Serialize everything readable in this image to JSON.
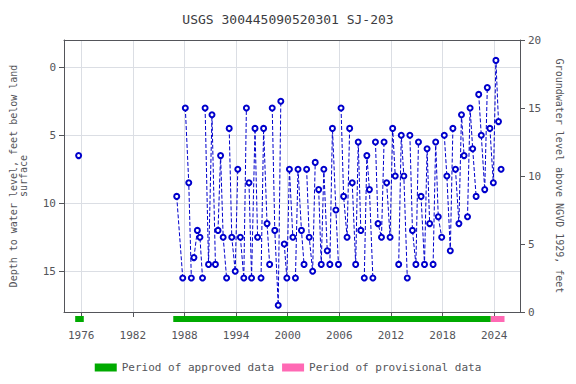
{
  "chart_data": {
    "type": "line",
    "title": "USGS 300445090520301 SJ-203",
    "ylabel": "Depth to water level, feet below land\nsurface",
    "y2label": "Groundwater level above NGVD 1929, feet",
    "xlim": [
      1974,
      2027
    ],
    "xticks": [
      1976,
      1982,
      1988,
      1994,
      2000,
      2006,
      2012,
      2018,
      2024
    ],
    "ylim": [
      18,
      -2
    ],
    "yticks": [
      0,
      5,
      10,
      15
    ],
    "y2lim": [
      0,
      20
    ],
    "y2ticks": [
      0,
      5,
      10,
      15,
      20
    ],
    "grid": true,
    "color": "#0000CC",
    "marker": "circle",
    "line_style": "dashed",
    "legend": "bottom",
    "series": [
      {
        "x": [
          1975.7
        ],
        "values": [
          6.5
        ]
      },
      {
        "x": [
          1987.1,
          1987.8
        ],
        "values": [
          9.5,
          15.5
        ]
      },
      {
        "x": [
          1988.1,
          1988.5,
          1988.8
        ],
        "values": [
          3.0,
          8.5,
          15.5
        ]
      },
      {
        "x": [
          1989.1,
          1989.5,
          1989.8,
          1990.1
        ],
        "values": [
          14.0,
          12.0,
          12.5,
          15.5
        ]
      },
      {
        "x": [
          1990.4,
          1990.8,
          1991.2,
          1991.6
        ],
        "values": [
          3.0,
          14.5,
          3.5,
          14.5
        ]
      },
      {
        "x": [
          1991.9,
          1992.2,
          1992.5,
          1992.9
        ],
        "values": [
          12.0,
          6.5,
          12.5,
          15.5
        ]
      },
      {
        "x": [
          1993.2,
          1993.5,
          1993.9,
          1994.2
        ],
        "values": [
          4.5,
          12.5,
          15.0,
          7.5
        ]
      },
      {
        "x": [
          1994.5,
          1994.9,
          1995.2
        ],
        "values": [
          12.5,
          15.5,
          3.0
        ]
      },
      {
        "x": [
          1995.5,
          1995.8,
          1996.2,
          1996.5
        ],
        "values": [
          8.5,
          15.5,
          4.5,
          12.5
        ]
      },
      {
        "x": [
          1996.9,
          1997.2,
          1997.6,
          1997.9
        ],
        "values": [
          15.5,
          4.5,
          11.5,
          14.5
        ]
      },
      {
        "x": [
          1998.2,
          1998.5,
          1998.9,
          1999.2
        ],
        "values": [
          3.0,
          12.0,
          17.5,
          2.5
        ]
      },
      {
        "x": [
          1999.6,
          1999.9,
          2000.2,
          2000.6
        ],
        "values": [
          13.0,
          15.5,
          7.5,
          12.5
        ]
      },
      {
        "x": [
          2000.9,
          2001.2,
          2001.6,
          2001.9
        ],
        "values": [
          15.5,
          7.5,
          12.0,
          14.5
        ]
      },
      {
        "x": [
          2002.2,
          2002.5,
          2002.9,
          2003.2
        ],
        "values": [
          7.5,
          12.5,
          15.0,
          7.0
        ]
      },
      {
        "x": [
          2003.6,
          2003.9,
          2004.2,
          2004.6
        ],
        "values": [
          9.0,
          14.5,
          7.5,
          13.5
        ]
      },
      {
        "x": [
          2004.9,
          2005.2,
          2005.6,
          2005.9
        ],
        "values": [
          14.5,
          4.5,
          10.5,
          14.5
        ]
      },
      {
        "x": [
          2006.2,
          2006.5,
          2006.9,
          2007.2
        ],
        "values": [
          3.0,
          9.5,
          12.5,
          4.5
        ]
      },
      {
        "x": [
          2007.5,
          2007.9,
          2008.2,
          2008.5
        ],
        "values": [
          8.5,
          14.5,
          5.5,
          12.0
        ]
      },
      {
        "x": [
          2008.9,
          2009.2,
          2009.5,
          2009.9
        ],
        "values": [
          15.5,
          6.5,
          9.0,
          15.5
        ]
      },
      {
        "x": [
          2010.2,
          2010.5,
          2010.9,
          2011.2
        ],
        "values": [
          5.5,
          11.5,
          12.5,
          5.5
        ]
      },
      {
        "x": [
          2011.5,
          2011.9,
          2012.2,
          2012.5
        ],
        "values": [
          8.5,
          12.5,
          4.5,
          8.0
        ]
      },
      {
        "x": [
          2012.9,
          2013.2,
          2013.5,
          2013.9
        ],
        "values": [
          14.5,
          5.0,
          8.0,
          15.5
        ]
      },
      {
        "x": [
          2014.2,
          2014.5,
          2014.9,
          2015.2
        ],
        "values": [
          5.0,
          12.0,
          14.5,
          5.5
        ]
      },
      {
        "x": [
          2015.5,
          2015.9,
          2016.2,
          2016.5
        ],
        "values": [
          9.5,
          14.5,
          6.0,
          11.5
        ]
      },
      {
        "x": [
          2016.9,
          2017.2,
          2017.5,
          2017.9
        ],
        "values": [
          14.5,
          5.5,
          11.0,
          12.5
        ]
      },
      {
        "x": [
          2018.2,
          2018.5,
          2018.9,
          2019.2
        ],
        "values": [
          5.0,
          8.0,
          13.5,
          4.5
        ]
      },
      {
        "x": [
          2019.5,
          2019.9,
          2020.2,
          2020.5
        ],
        "values": [
          7.5,
          11.5,
          3.5,
          6.5
        ]
      },
      {
        "x": [
          2020.9,
          2021.2,
          2021.5,
          2021.9
        ],
        "values": [
          11.0,
          3.0,
          6.0,
          9.5
        ]
      },
      {
        "x": [
          2022.2,
          2022.5,
          2022.9,
          2023.2
        ],
        "values": [
          2.0,
          5.0,
          9.0,
          1.5
        ]
      },
      {
        "x": [
          2023.5,
          2023.9,
          2024.2,
          2024.5
        ],
        "values": [
          4.5,
          8.5,
          -0.5,
          4.0
        ]
      },
      {
        "x": [
          2024.8
        ],
        "values": [
          7.5
        ]
      }
    ],
    "periods": [
      {
        "name": "Period of approved data",
        "color": "#00aa00",
        "ranges": [
          [
            1975.3,
            1976.3
          ],
          [
            1986.7,
            2023.6
          ]
        ]
      },
      {
        "name": "Period of provisional data",
        "color": "#FF69B4",
        "ranges": [
          [
            2023.6,
            2025.2
          ]
        ]
      }
    ]
  }
}
